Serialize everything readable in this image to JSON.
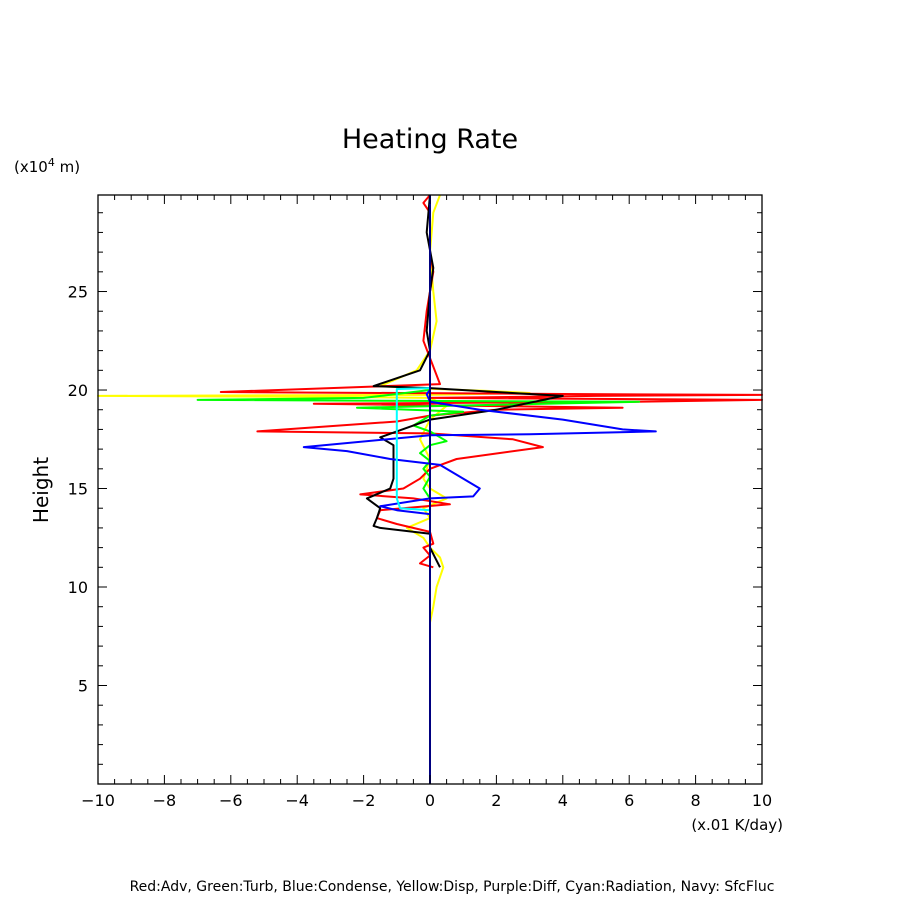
{
  "chart_data": {
    "type": "line",
    "title": "Heating Rate",
    "xlabel": "",
    "x_unit": "(x.01 K/day)",
    "ylabel": "Height",
    "y_unit_prefix": "(x10",
    "y_unit_exp": "4",
    "y_unit_suffix": " m)",
    "xlim": [
      -10,
      10
    ],
    "ylim": [
      0,
      29.9
    ],
    "xticks": [
      -10,
      -8,
      -6,
      -4,
      -2,
      0,
      2,
      4,
      6,
      8,
      10
    ],
    "xtick_labels": [
      "−10",
      "−8",
      "−6",
      "−4",
      "−2",
      "0",
      "2",
      "4",
      "6",
      "8",
      "10"
    ],
    "yticks": [
      5,
      10,
      15,
      20,
      25
    ],
    "ytick_labels": [
      "5",
      "10",
      "15",
      "20",
      "25"
    ],
    "grid": false,
    "legend_text": "Red:Adv, Green:Turb, Blue:Condense, Yellow:Disp, Purple:Diff, Cyan:Radiation, Navy: SfcFluc",
    "series": [
      {
        "color": "#ffff00",
        "points": [
          [
            0.3,
            29.9
          ],
          [
            0.1,
            29
          ],
          [
            0,
            27
          ],
          [
            0.1,
            25
          ],
          [
            0.2,
            23.5
          ],
          [
            0,
            22
          ],
          [
            -0.4,
            21
          ],
          [
            -1.5,
            20.2
          ],
          [
            -0.5,
            20.1
          ],
          [
            1.8,
            19.95
          ],
          [
            3,
            19.85
          ],
          [
            0,
            19.75
          ],
          [
            -10,
            19.7
          ],
          [
            -3,
            19.65
          ],
          [
            0,
            19.6
          ],
          [
            0.5,
            19.2
          ],
          [
            0,
            18.5
          ],
          [
            -0.3,
            17.5
          ],
          [
            0,
            16.5
          ],
          [
            -0.2,
            15.5
          ],
          [
            0,
            15
          ],
          [
            0.5,
            14.5
          ],
          [
            -0.2,
            14
          ],
          [
            0,
            13.5
          ],
          [
            -0.7,
            13
          ],
          [
            -0.2,
            12.5
          ],
          [
            0,
            12
          ],
          [
            0.3,
            11.5
          ],
          [
            0.4,
            11
          ],
          [
            0.2,
            10
          ],
          [
            0.1,
            9
          ],
          [
            0,
            8.2
          ]
        ]
      },
      {
        "color": "#ff0000",
        "points": [
          [
            0,
            29.9
          ],
          [
            -0.2,
            29.5
          ],
          [
            0,
            29
          ],
          [
            0,
            27
          ],
          [
            0.1,
            26
          ],
          [
            -0.1,
            24
          ],
          [
            -0.2,
            22.5
          ],
          [
            0.3,
            20.3
          ],
          [
            -3,
            20.1
          ],
          [
            -6.3,
            19.9
          ],
          [
            4,
            19.8
          ],
          [
            10,
            19.75
          ],
          [
            5,
            19.7
          ],
          [
            0,
            19.6
          ],
          [
            10,
            19.5
          ],
          [
            6,
            19.4
          ],
          [
            -3.5,
            19.3
          ],
          [
            5.8,
            19.1
          ],
          [
            2,
            19
          ],
          [
            0,
            18.7
          ],
          [
            -1,
            18.4
          ],
          [
            -5.2,
            17.9
          ],
          [
            0,
            17.8
          ],
          [
            2.5,
            17.5
          ],
          [
            3.4,
            17.1
          ],
          [
            0.8,
            16.5
          ],
          [
            0,
            16
          ],
          [
            -0.3,
            15.5
          ],
          [
            -0.8,
            15
          ],
          [
            -2.1,
            14.7
          ],
          [
            -0.5,
            14.5
          ],
          [
            0.6,
            14.2
          ],
          [
            -1.5,
            13.9
          ],
          [
            -1.6,
            13.5
          ],
          [
            -1,
            13.2
          ],
          [
            0,
            12.8
          ],
          [
            0.1,
            12.2
          ],
          [
            -0.2,
            12
          ],
          [
            0,
            11.6
          ],
          [
            -0.3,
            11.2
          ],
          [
            0.1,
            11
          ]
        ]
      },
      {
        "color": "#00ff00",
        "points": [
          [
            0,
            20
          ],
          [
            -2,
            19.6
          ],
          [
            -7,
            19.5
          ],
          [
            6.3,
            19.4
          ],
          [
            -2.2,
            19.1
          ],
          [
            1,
            18.9
          ],
          [
            0,
            18.7
          ],
          [
            -0.5,
            18.2
          ],
          [
            0,
            17.9
          ],
          [
            0.5,
            17.4
          ],
          [
            0,
            17.2
          ],
          [
            -0.3,
            16.8
          ],
          [
            0,
            16.4
          ],
          [
            -0.2,
            16
          ],
          [
            0,
            15.6
          ],
          [
            -0.2,
            15
          ],
          [
            0,
            14.5
          ]
        ]
      },
      {
        "color": "#000000",
        "points": [
          [
            0,
            29.9
          ],
          [
            -0.1,
            28
          ],
          [
            0.1,
            26.2
          ],
          [
            0,
            25
          ],
          [
            -0.1,
            23
          ],
          [
            0,
            22
          ],
          [
            -0.3,
            21
          ],
          [
            -1.7,
            20.2
          ],
          [
            0,
            20.1
          ],
          [
            3,
            19.8
          ],
          [
            4,
            19.7
          ],
          [
            2,
            19
          ],
          [
            0,
            18.5
          ],
          [
            -1.5,
            17.6
          ],
          [
            -1.1,
            17.2
          ],
          [
            -1.1,
            16.4
          ],
          [
            -1.1,
            15.5
          ],
          [
            -1.2,
            15
          ],
          [
            -1.9,
            14.5
          ],
          [
            -1.5,
            14
          ],
          [
            -1.6,
            13.5
          ],
          [
            -1.7,
            13.1
          ],
          [
            -1.5,
            13
          ],
          [
            0,
            12.7
          ],
          [
            0,
            12
          ],
          [
            0.3,
            11
          ]
        ]
      },
      {
        "color": "#0000ff",
        "points": [
          [
            0,
            20
          ],
          [
            -0.1,
            19.8
          ],
          [
            0,
            19.4
          ],
          [
            1.5,
            19
          ],
          [
            4,
            18.5
          ],
          [
            5.8,
            18
          ],
          [
            6.8,
            17.9
          ],
          [
            3,
            17.75
          ],
          [
            0,
            17.7
          ],
          [
            -3.8,
            17.1
          ],
          [
            -2.5,
            16.9
          ],
          [
            -1.2,
            16.5
          ],
          [
            0.3,
            16.2
          ],
          [
            1.5,
            15
          ],
          [
            1.3,
            14.6
          ],
          [
            0,
            14.5
          ],
          [
            -1.5,
            14.1
          ],
          [
            -1,
            13.9
          ],
          [
            0,
            13.7
          ],
          [
            0,
            12.5
          ]
        ]
      },
      {
        "color": "#00ffff",
        "points": [
          [
            0,
            20.1
          ],
          [
            -1,
            20.05
          ],
          [
            -1,
            19.5
          ],
          [
            -1,
            18.5
          ],
          [
            -1,
            17.5
          ],
          [
            -1,
            16.5
          ],
          [
            -1,
            15.5
          ],
          [
            -1,
            14.5
          ],
          [
            -0.9,
            14
          ],
          [
            0,
            13.9
          ]
        ]
      },
      {
        "color": "#000080",
        "points": [
          [
            0,
            29.9
          ],
          [
            0,
            0
          ]
        ]
      }
    ]
  }
}
